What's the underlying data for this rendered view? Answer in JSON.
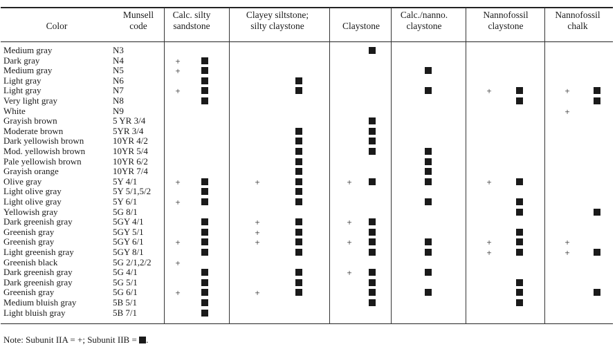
{
  "columns": [
    {
      "label": "Color"
    },
    {
      "label": "Munsell code"
    },
    {
      "label": "Calc. silty sandstone"
    },
    {
      "label": "Clayey siltstone; silty claystone"
    },
    {
      "label": "Claystone"
    },
    {
      "label": "Calc./nanno. claystone"
    },
    {
      "label": "Nannofossil claystone"
    },
    {
      "label": "Nannofossil chalk"
    }
  ],
  "header_lines": [
    [
      "Color"
    ],
    [
      "Munsell",
      "code"
    ],
    [
      "Calc. silty",
      "sandstone"
    ],
    [
      "Clayey siltstone;",
      "silty claystone"
    ],
    [
      "Claystone"
    ],
    [
      "Calc./nanno.",
      "claystone"
    ],
    [
      "Nannofossil",
      "claystone"
    ],
    [
      "Nannofossil",
      "chalk"
    ]
  ],
  "legend": {
    "subunit_IIA": "+",
    "subunit_IIB": "filled-square-icon"
  },
  "rows": [
    {
      "color": "Medium gray",
      "code": "N3",
      "marks": [
        [],
        [],
        [
          "B"
        ],
        [],
        [],
        []
      ]
    },
    {
      "color": "Dark gray",
      "code": "N4",
      "marks": [
        [
          "A",
          "B"
        ],
        [],
        [],
        [],
        [],
        []
      ]
    },
    {
      "color": "Medium gray",
      "code": "N5",
      "marks": [
        [
          "A",
          "B"
        ],
        [],
        [],
        [
          "B"
        ],
        [],
        []
      ]
    },
    {
      "color": "Light gray",
      "code": "N6",
      "marks": [
        [
          "B"
        ],
        [
          "B"
        ],
        [],
        [],
        [],
        []
      ]
    },
    {
      "color": "Light gray",
      "code": "N7",
      "marks": [
        [
          "A",
          "B"
        ],
        [
          "B"
        ],
        [],
        [
          "B"
        ],
        [
          "A",
          "B"
        ],
        [
          "A",
          "B"
        ]
      ]
    },
    {
      "color": "Very light gray",
      "code": "N8",
      "marks": [
        [
          "B"
        ],
        [],
        [],
        [],
        [
          "B"
        ],
        [
          "B"
        ]
      ]
    },
    {
      "color": "White",
      "code": "N9",
      "marks": [
        [],
        [],
        [],
        [],
        [],
        [
          "A"
        ]
      ]
    },
    {
      "color": "Grayish brown",
      "code": "5 YR 3/4",
      "marks": [
        [],
        [],
        [
          "B"
        ],
        [],
        [],
        []
      ]
    },
    {
      "color": "Moderate brown",
      "code": "5YR 3/4",
      "marks": [
        [],
        [
          "B"
        ],
        [
          "B"
        ],
        [],
        [],
        []
      ]
    },
    {
      "color": "Dark yellowish brown",
      "code": "10YR 4/2",
      "marks": [
        [],
        [
          "B"
        ],
        [
          "B"
        ],
        [],
        [],
        []
      ]
    },
    {
      "color": "Mod. yellowish brown",
      "code": "10YR 5/4",
      "marks": [
        [],
        [
          "B"
        ],
        [
          "B"
        ],
        [
          "B"
        ],
        [],
        []
      ]
    },
    {
      "color": "Pale yellowish brown",
      "code": "10YR 6/2",
      "marks": [
        [],
        [
          "B"
        ],
        [],
        [
          "B"
        ],
        [],
        []
      ]
    },
    {
      "color": "Grayish orange",
      "code": "10YR 7/4",
      "marks": [
        [],
        [
          "B"
        ],
        [],
        [
          "B"
        ],
        [],
        []
      ]
    },
    {
      "color": "Olive gray",
      "code": "5Y 4/1",
      "marks": [
        [
          "A",
          "B"
        ],
        [
          "A",
          "B"
        ],
        [
          "A",
          "B"
        ],
        [
          "B"
        ],
        [
          "A",
          "B"
        ],
        []
      ]
    },
    {
      "color": "Light olive gray",
      "code": "5Y 5/1,5/2",
      "marks": [
        [
          "B"
        ],
        [
          "B"
        ],
        [],
        [],
        [],
        []
      ]
    },
    {
      "color": "Light olive gray",
      "code": "5Y 6/1",
      "marks": [
        [
          "A",
          "B"
        ],
        [
          "B"
        ],
        [],
        [
          "B"
        ],
        [
          "B"
        ],
        []
      ]
    },
    {
      "color": "Yellowish gray",
      "code": "5G 8/1",
      "marks": [
        [],
        [],
        [],
        [],
        [
          "B"
        ],
        [
          "B"
        ]
      ]
    },
    {
      "color": "Dark greenish gray",
      "code": "5GY 4/1",
      "marks": [
        [
          "B"
        ],
        [
          "A",
          "B"
        ],
        [
          "A",
          "B"
        ],
        [],
        [],
        []
      ]
    },
    {
      "color": "Greenish gray",
      "code": "5GY 5/1",
      "marks": [
        [
          "B"
        ],
        [
          "A",
          "B"
        ],
        [
          "B"
        ],
        [],
        [
          "B"
        ],
        []
      ]
    },
    {
      "color": "Greenish gray",
      "code": "5GY 6/1",
      "marks": [
        [
          "A",
          "B"
        ],
        [
          "A",
          "B"
        ],
        [
          "A",
          "B"
        ],
        [
          "B"
        ],
        [
          "A",
          "B"
        ],
        [
          "A"
        ]
      ]
    },
    {
      "color": "Light greenish gray",
      "code": "5GY 8/1",
      "marks": [
        [
          "B"
        ],
        [
          "B"
        ],
        [
          "B"
        ],
        [
          "B"
        ],
        [
          "A",
          "B"
        ],
        [
          "A",
          "B"
        ]
      ]
    },
    {
      "color": "Greenish black",
      "code": "5G 2/1,2/2",
      "marks": [
        [
          "A"
        ],
        [],
        [],
        [],
        [],
        []
      ]
    },
    {
      "color": "Dark greenish gray",
      "code": "5G 4/1",
      "marks": [
        [
          "B"
        ],
        [
          "B"
        ],
        [
          "A",
          "B"
        ],
        [
          "B"
        ],
        [],
        []
      ]
    },
    {
      "color": "Dark greenish gray",
      "code": "5G 5/1",
      "marks": [
        [
          "B"
        ],
        [
          "B"
        ],
        [
          "B"
        ],
        [],
        [
          "B"
        ],
        []
      ]
    },
    {
      "color": "Greenish gray",
      "code": "5G 6/1",
      "marks": [
        [
          "A",
          "B"
        ],
        [
          "A",
          "B"
        ],
        [
          "B"
        ],
        [
          "B"
        ],
        [
          "B"
        ],
        [
          "B"
        ]
      ]
    },
    {
      "color": "Medium bluish gray",
      "code": "5B 5/1",
      "marks": [
        [
          "B"
        ],
        [],
        [
          "B"
        ],
        [],
        [
          "B"
        ],
        []
      ]
    },
    {
      "color": "Light bluish gray",
      "code": "5B 7/1",
      "marks": [
        [
          "B"
        ],
        [],
        [],
        [],
        [],
        []
      ]
    }
  ],
  "note": {
    "prefix": "Note: Subunit IIA = +; Subunit IIB = ",
    "suffix": "."
  }
}
